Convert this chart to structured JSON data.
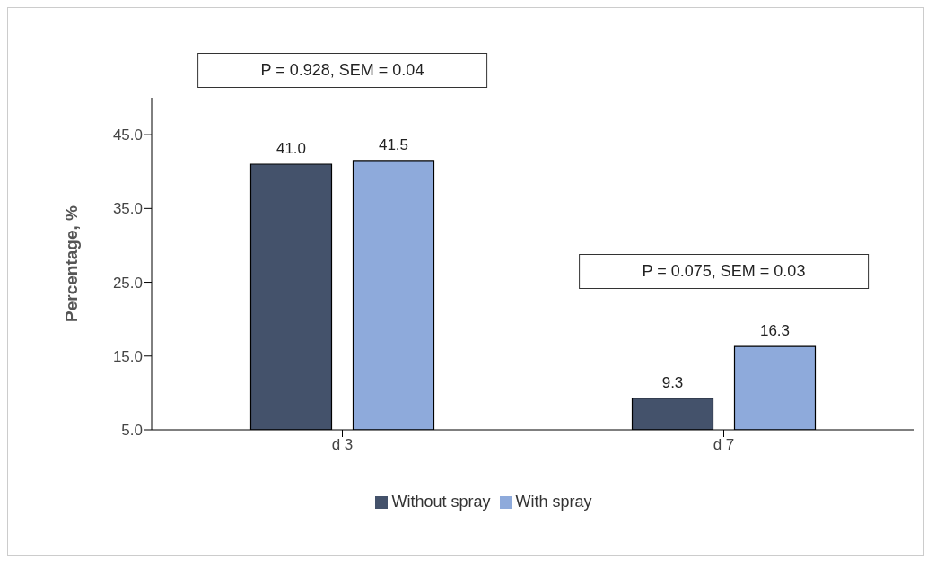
{
  "chart_data": {
    "type": "bar",
    "ylabel": "Percentage, %",
    "categories": [
      "d 3",
      "d 7"
    ],
    "series": [
      {
        "name": "Without spray",
        "color": "#44526b",
        "values": [
          41.0,
          9.3
        ],
        "value_labels": [
          "41.0",
          "9.3"
        ]
      },
      {
        "name": "With spray",
        "color": "#8eaadb",
        "values": [
          41.5,
          16.3
        ],
        "value_labels": [
          "41.5",
          "16.3"
        ]
      }
    ],
    "ylim": [
      5,
      50
    ],
    "yticks": [
      {
        "value": 5,
        "label": "5.0"
      },
      {
        "value": 15,
        "label": "15.0"
      },
      {
        "value": 25,
        "label": "25.0"
      },
      {
        "value": 35,
        "label": "35.0"
      },
      {
        "value": 45,
        "label": "45.0"
      }
    ],
    "grid": false,
    "legend": "bottom",
    "annotations": [
      "P = 0.928, SEM = 0.04",
      "P = 0.075, SEM = 0.03"
    ]
  }
}
